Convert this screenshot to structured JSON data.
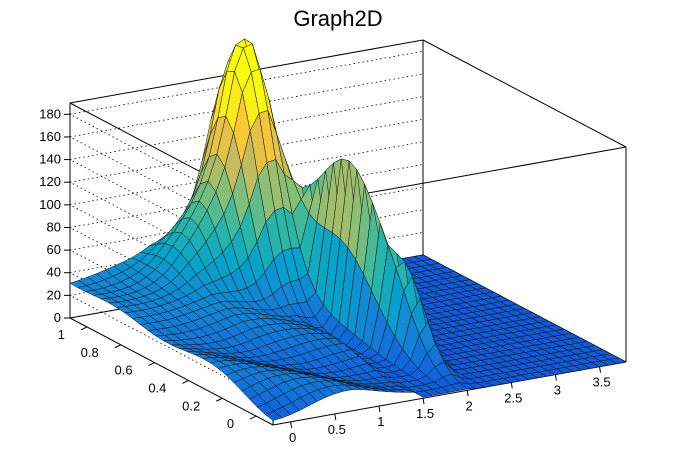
{
  "chart_data": {
    "type": "surface",
    "title": "Graph2D",
    "xlabel": "",
    "ylabel": "",
    "zlabel": "",
    "xlim": [
      -0.2,
      3.8
    ],
    "ylim": [
      -0.1,
      1.1
    ],
    "zlim": [
      0,
      190
    ],
    "x_ticks": [
      "0",
      "0.5",
      "1",
      "1.5",
      "2",
      "2.5",
      "3",
      "3.5"
    ],
    "y_ticks": [
      "0",
      "0.2",
      "0.4",
      "0.6",
      "0.8",
      "1"
    ],
    "z_ticks": [
      "0",
      "20",
      "40",
      "60",
      "80",
      "100",
      "120",
      "140",
      "160",
      "180"
    ],
    "grid": true,
    "palette": [
      "#352a87",
      "#0f5cdd",
      "#1481d6",
      "#06a4ca",
      "#2eb7a4",
      "#87bf77",
      "#d1bb59",
      "#fec832",
      "#f9fb0e"
    ],
    "surface_peaks": [
      {
        "x": 1.6,
        "y": 1.0,
        "z": 186
      },
      {
        "x": 1.9,
        "y": 0.6,
        "z": 150
      },
      {
        "x": 1.25,
        "y": 0.92,
        "z": 135
      }
    ],
    "edge_levels": {
      "back_edge_y1": [
        27,
        27,
        30,
        38,
        50,
        95,
        186,
        150,
        20,
        3,
        0
      ],
      "front_edge_y0": [
        3,
        5,
        8,
        10,
        12,
        16,
        20,
        4,
        2,
        1,
        1
      ]
    }
  }
}
